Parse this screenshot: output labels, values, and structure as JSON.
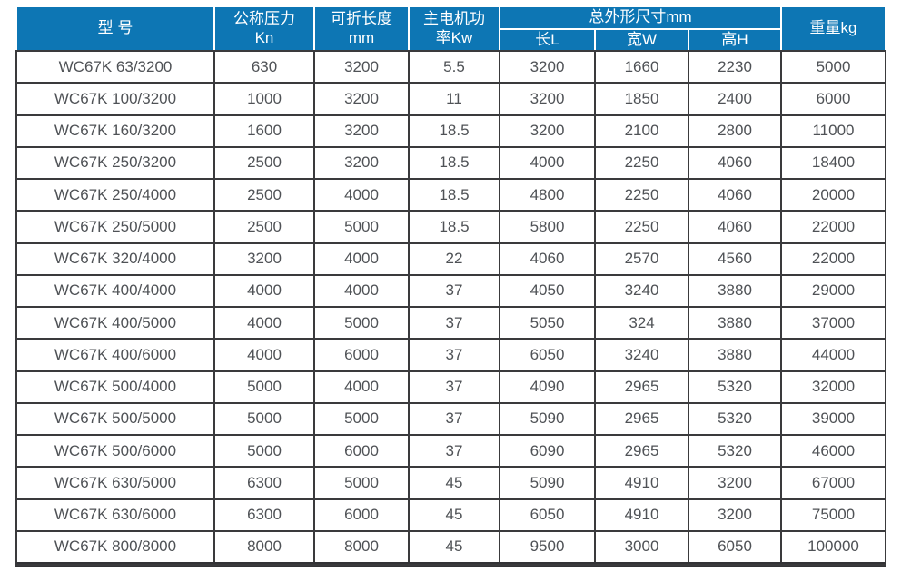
{
  "table": {
    "header": {
      "model": "型 号",
      "pressure_line1": "公称压力",
      "pressure_line2": "Kn",
      "length_line1": "可折长度",
      "length_line2": "mm",
      "power_line1": "主电机功",
      "power_line2": "率Kw",
      "dimensions_group": "总外形尺寸mm",
      "dim_length": "长L",
      "dim_width": "宽W",
      "dim_height": "高H",
      "weight": "重量kg"
    },
    "rows": [
      [
        "WC67K 63/3200",
        "630",
        "3200",
        "5.5",
        "3200",
        "1660",
        "2230",
        "5000"
      ],
      [
        "WC67K 100/3200",
        "1000",
        "3200",
        "11",
        "3200",
        "1850",
        "2400",
        "6000"
      ],
      [
        "WC67K 160/3200",
        "1600",
        "3200",
        "18.5",
        "3200",
        "2100",
        "2800",
        "11000"
      ],
      [
        "WC67K 250/3200",
        "2500",
        "3200",
        "18.5",
        "4000",
        "2250",
        "4060",
        "18400"
      ],
      [
        "WC67K 250/4000",
        "2500",
        "4000",
        "18.5",
        "4800",
        "2250",
        "4060",
        "20000"
      ],
      [
        "WC67K 250/5000",
        "2500",
        "5000",
        "18.5",
        "5800",
        "2250",
        "4060",
        "22000"
      ],
      [
        "WC67K 320/4000",
        "3200",
        "4000",
        "22",
        "4060",
        "2570",
        "4560",
        "22000"
      ],
      [
        "WC67K 400/4000",
        "4000",
        "4000",
        "37",
        "4050",
        "3240",
        "3880",
        "29000"
      ],
      [
        "WC67K 400/5000",
        "4000",
        "5000",
        "37",
        "5050",
        "324",
        "3880",
        "37000"
      ],
      [
        "WC67K 400/6000",
        "4000",
        "6000",
        "37",
        "6050",
        "3240",
        "3880",
        "44000"
      ],
      [
        "WC67K 500/4000",
        "5000",
        "4000",
        "37",
        "4090",
        "2965",
        "5320",
        "32000"
      ],
      [
        "WC67K 500/5000",
        "5000",
        "5000",
        "37",
        "5090",
        "2965",
        "5320",
        "39000"
      ],
      [
        "WC67K 500/6000",
        "5000",
        "6000",
        "37",
        "6090",
        "2965",
        "5320",
        "46000"
      ],
      [
        "WC67K 630/5000",
        "6300",
        "5000",
        "45",
        "5090",
        "4910",
        "3200",
        "67000"
      ],
      [
        "WC67K 630/6000",
        "6300",
        "6000",
        "45",
        "6050",
        "4910",
        "3200",
        "75000"
      ],
      [
        "WC67K 800/8000",
        "8000",
        "8000",
        "45",
        "9500",
        "3000",
        "6050",
        "100000"
      ]
    ],
    "colors": {
      "header_bg": "#0d76b4",
      "header_text": "#ffffff",
      "grid_line": "#3a3a3c",
      "body_text": "#4f5256"
    }
  }
}
